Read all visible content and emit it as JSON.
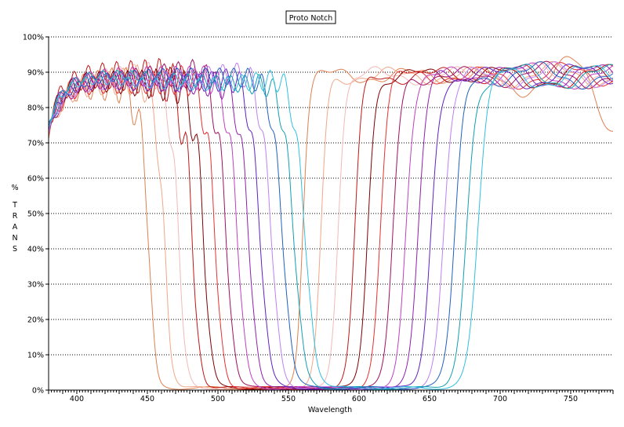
{
  "chart_data": {
    "type": "line",
    "title": "Proto Notch",
    "xlabel": "Wavelength",
    "ylabel_chars": [
      "%",
      "T",
      "R",
      "A",
      "N",
      "S"
    ],
    "xlim": [
      380,
      780
    ],
    "ylim": [
      0,
      100
    ],
    "x_ticks": [
      400,
      450,
      500,
      550,
      600,
      650,
      700,
      750
    ],
    "y_ticks": [
      0,
      10,
      20,
      30,
      40,
      50,
      60,
      70,
      80,
      90,
      100
    ],
    "y_tick_labels": [
      "0%",
      "10%",
      "20%",
      "30%",
      "40%",
      "50%",
      "60%",
      "70%",
      "80%",
      "90%",
      "100%"
    ],
    "grid": "horizontal-dotted",
    "series": [
      {
        "color": "#e08050",
        "low_edge": 451,
        "high_edge": 560,
        "ripple_amp": 3.0,
        "pre_drop": 73,
        "edge_width": 2.2,
        "tail": "droop"
      },
      {
        "color": "#f0a888",
        "low_edge": 462,
        "high_edge": 573,
        "ripple_amp": 2.5,
        "pre_drop": 75,
        "edge_width": 2.4,
        "tail": "wave"
      },
      {
        "color": "#f4b8b8",
        "low_edge": 472,
        "high_edge": 585,
        "ripple_amp": 2.0,
        "pre_drop": 77,
        "edge_width": 2.5,
        "tail": "wave"
      },
      {
        "color": "#c01818",
        "low_edge": 482,
        "high_edge": 597,
        "ripple_amp": 3.5,
        "pre_drop": 75,
        "edge_width": 2.6,
        "tail": "wave"
      },
      {
        "color": "#800000",
        "low_edge": 490,
        "high_edge": 606,
        "ripple_amp": 3.0,
        "pre_drop": 76,
        "edge_width": 2.7,
        "tail": "wave"
      },
      {
        "color": "#e83030",
        "low_edge": 498,
        "high_edge": 615,
        "ripple_amp": 2.5,
        "pre_drop": 77,
        "edge_width": 2.8,
        "tail": "wave"
      },
      {
        "color": "#a01060",
        "low_edge": 506,
        "high_edge": 624,
        "ripple_amp": 2.5,
        "pre_drop": 77,
        "edge_width": 2.9,
        "tail": "wave"
      },
      {
        "color": "#c040c0",
        "low_edge": 514,
        "high_edge": 633,
        "ripple_amp": 2.2,
        "pre_drop": 78,
        "edge_width": 3.0,
        "tail": "wave"
      },
      {
        "color": "#9020b0",
        "low_edge": 522,
        "high_edge": 642,
        "ripple_amp": 2.2,
        "pre_drop": 78,
        "edge_width": 3.1,
        "tail": "wave"
      },
      {
        "color": "#6020c0",
        "low_edge": 530,
        "high_edge": 651,
        "ripple_amp": 2.0,
        "pre_drop": 79,
        "edge_width": 3.2,
        "tail": "wave"
      },
      {
        "color": "#c080f0",
        "low_edge": 538,
        "high_edge": 660,
        "ripple_amp": 2.0,
        "pre_drop": 79,
        "edge_width": 3.3,
        "tail": "wave"
      },
      {
        "color": "#2060c0",
        "low_edge": 546,
        "high_edge": 668,
        "ripple_amp": 1.8,
        "pre_drop": 80,
        "edge_width": 3.4,
        "tail": "wave"
      },
      {
        "color": "#10a0b0",
        "low_edge": 554,
        "high_edge": 676,
        "ripple_amp": 1.8,
        "pre_drop": 80,
        "edge_width": 3.5,
        "tail": "wave"
      },
      {
        "color": "#30c0e0",
        "low_edge": 562,
        "high_edge": 684,
        "ripple_amp": 1.8,
        "pre_drop": 80,
        "edge_width": 3.6,
        "tail": "wave"
      }
    ]
  }
}
